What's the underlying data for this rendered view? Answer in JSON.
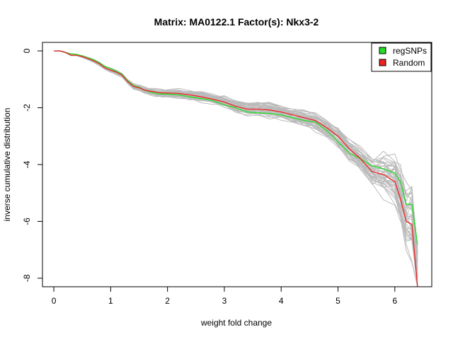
{
  "chart_data": {
    "type": "line",
    "title": "Matrix: MA0122.1 Factor(s): Nkx3-2",
    "xlabel": "weight fold change",
    "ylabel": "inverse cumulative distribution",
    "xlim": [
      -0.2,
      6.65
    ],
    "ylim": [
      -8.3,
      0.3
    ],
    "xticks": [
      0,
      1,
      2,
      3,
      4,
      5,
      6
    ],
    "yticks": [
      0,
      -2,
      -4,
      -6,
      -8
    ],
    "grid": false,
    "legend": {
      "position": "top-right",
      "entries": [
        "regSNPs",
        "Random"
      ]
    },
    "colors": {
      "regsnps": "#22dd22",
      "random": "#ee2222",
      "background_runs": "#bbbbbb"
    },
    "series": [
      {
        "name": "regSNPs",
        "x": [
          0,
          0.1,
          0.2,
          0.3,
          0.4,
          0.5,
          0.6,
          0.7,
          0.8,
          0.9,
          1.0,
          1.1,
          1.2,
          1.3,
          1.4,
          1.5,
          1.6,
          1.7,
          1.8,
          1.9,
          2.0,
          2.2,
          2.4,
          2.6,
          2.8,
          3.0,
          3.2,
          3.4,
          3.6,
          3.8,
          4.0,
          4.2,
          4.4,
          4.6,
          4.8,
          5.0,
          5.2,
          5.4,
          5.6,
          5.8,
          6.0,
          6.1,
          6.2,
          6.3,
          6.4
        ],
        "y": [
          0,
          0,
          -0.05,
          -0.1,
          -0.12,
          -0.18,
          -0.25,
          -0.32,
          -0.42,
          -0.55,
          -0.62,
          -0.72,
          -0.82,
          -1.05,
          -1.22,
          -1.28,
          -1.38,
          -1.45,
          -1.5,
          -1.52,
          -1.52,
          -1.55,
          -1.62,
          -1.68,
          -1.75,
          -1.9,
          -2.0,
          -2.15,
          -2.18,
          -2.2,
          -2.25,
          -2.35,
          -2.45,
          -2.5,
          -2.8,
          -3.2,
          -3.6,
          -3.8,
          -4.05,
          -4.15,
          -4.3,
          -4.6,
          -5.4,
          -5.4,
          -6.8
        ]
      },
      {
        "name": "Random",
        "x": [
          0,
          0.1,
          0.2,
          0.3,
          0.4,
          0.5,
          0.6,
          0.7,
          0.8,
          0.9,
          1.0,
          1.1,
          1.2,
          1.3,
          1.4,
          1.5,
          1.6,
          1.7,
          1.8,
          1.9,
          2.0,
          2.2,
          2.4,
          2.6,
          2.8,
          3.0,
          3.2,
          3.4,
          3.6,
          3.8,
          4.0,
          4.2,
          4.4,
          4.6,
          4.8,
          5.0,
          5.2,
          5.4,
          5.6,
          5.8,
          6.0,
          6.1,
          6.2,
          6.3,
          6.4
        ],
        "y": [
          0,
          0,
          -0.05,
          -0.15,
          -0.15,
          -0.2,
          -0.27,
          -0.35,
          -0.45,
          -0.6,
          -0.68,
          -0.75,
          -0.85,
          -1.08,
          -1.25,
          -1.3,
          -1.38,
          -1.42,
          -1.45,
          -1.48,
          -1.48,
          -1.5,
          -1.55,
          -1.62,
          -1.7,
          -1.8,
          -1.95,
          -2.05,
          -2.05,
          -2.08,
          -2.15,
          -2.25,
          -2.35,
          -2.45,
          -2.7,
          -3.0,
          -3.45,
          -3.8,
          -4.25,
          -4.35,
          -4.6,
          -5.2,
          -6.0,
          -6.1,
          -8.3
        ]
      }
    ]
  }
}
